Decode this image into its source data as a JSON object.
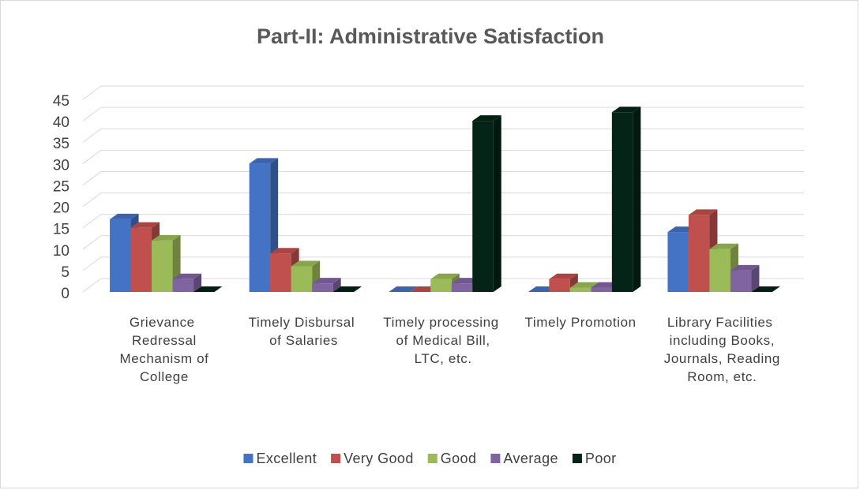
{
  "chart_data": {
    "type": "bar3d",
    "title": "Part-II: Administrative Satisfaction",
    "categories": [
      "Grievance Redressal Mechanism of College",
      "Timely Disbursal of Salaries",
      "Timely processing of Medical Bill, LTC, etc.",
      "Timely Promotion",
      "Library Facilities including Books, Journals, Reading Room, etc."
    ],
    "series": [
      {
        "name": "Excellent",
        "color": "#4472c4",
        "values": [
          17,
          30,
          0,
          0,
          14
        ]
      },
      {
        "name": "Very Good",
        "color": "#c0504d",
        "values": [
          15,
          9,
          0,
          3,
          18
        ]
      },
      {
        "name": "Good",
        "color": "#9bbb59",
        "values": [
          12,
          6,
          3,
          1,
          10
        ]
      },
      {
        "name": "Average",
        "color": "#8064a2",
        "values": [
          3,
          2,
          2,
          1,
          5
        ]
      },
      {
        "name": "Poor",
        "color": "#032416",
        "values": [
          0,
          0,
          40,
          42,
          0
        ]
      }
    ],
    "ylim": [
      0,
      45
    ],
    "yticks": [
      0,
      5,
      10,
      15,
      20,
      25,
      30,
      35,
      40,
      45
    ],
    "grid": true,
    "legend": "bottom"
  }
}
